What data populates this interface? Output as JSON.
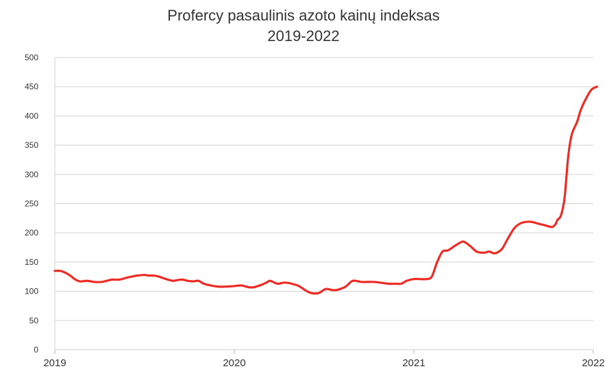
{
  "chart_data": {
    "type": "line",
    "title": "Profercy pasaulinis azoto kainų indeksas",
    "subtitle": "2019-2022",
    "xlabel": "",
    "ylabel": "",
    "xlim": [
      2019,
      2022
    ],
    "ylim": [
      0,
      500
    ],
    "y_ticks": [
      0,
      50,
      100,
      150,
      200,
      250,
      300,
      350,
      400,
      450,
      500
    ],
    "x_ticks": [
      2019,
      2020,
      2021,
      2022
    ],
    "x_tick_labels": [
      "2019",
      "2020",
      "2021",
      "2022"
    ],
    "grid": true,
    "legend": "none",
    "series": [
      {
        "color": "#ee2a24",
        "x": [
          2019.0,
          2019.03,
          2019.05,
          2019.07,
          2019.09,
          2019.11,
          2019.14,
          2019.18,
          2019.22,
          2019.26,
          2019.29,
          2019.32,
          2019.36,
          2019.41,
          2019.46,
          2019.5,
          2019.52,
          2019.54,
          2019.57,
          2019.6,
          2019.63,
          2019.66,
          2019.68,
          2019.71,
          2019.74,
          2019.77,
          2019.8,
          2019.83,
          2019.87,
          2019.91,
          2019.95,
          2020.0,
          2020.04,
          2020.08,
          2020.11,
          2020.15,
          2020.18,
          2020.2,
          2020.24,
          2020.28,
          2020.32,
          2020.36,
          2020.4,
          2020.43,
          2020.47,
          2020.51,
          2020.55,
          2020.58,
          2020.62,
          2020.66,
          2020.71,
          2020.78,
          2020.86,
          2020.9,
          2020.93,
          2020.96,
          2021.0,
          2021.03,
          2021.07,
          2021.1,
          2021.13,
          2021.16,
          2021.19,
          2021.23,
          2021.27,
          2021.29,
          2021.32,
          2021.35,
          2021.39,
          2021.42,
          2021.45,
          2021.49,
          2021.52,
          2021.56,
          2021.6,
          2021.65,
          2021.69,
          2021.73,
          2021.77,
          2021.79,
          2021.8,
          2021.82,
          2021.84,
          2021.86,
          2021.88,
          2021.91,
          2021.93,
          2021.96,
          2021.99,
          2022.02
        ],
        "y": [
          135,
          135,
          133,
          130,
          126,
          121,
          117,
          118,
          116,
          116,
          118,
          120,
          120,
          124,
          127,
          128,
          127,
          127,
          126,
          123,
          120,
          118,
          119,
          120,
          118,
          117,
          118,
          113,
          110,
          108,
          108,
          109,
          110,
          107,
          107,
          111,
          115,
          118,
          113,
          115,
          113,
          109,
          101,
          97,
          97,
          104,
          102,
          103,
          108,
          118,
          116,
          116,
          113,
          113,
          113,
          118,
          121,
          121,
          121,
          125,
          150,
          168,
          170,
          178,
          185,
          183,
          176,
          168,
          166,
          168,
          165,
          172,
          188,
          208,
          217,
          219,
          216,
          213,
          210,
          215,
          222,
          230,
          260,
          330,
          368,
          390,
          410,
          430,
          445,
          450
        ]
      }
    ]
  }
}
